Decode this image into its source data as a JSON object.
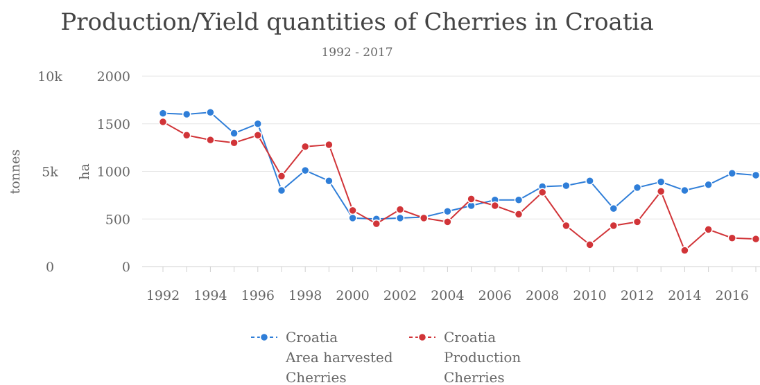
{
  "chart_data": {
    "type": "line",
    "title": "Production/Yield quantities of Cherries in Croatia",
    "subtitle": "1992 - 2017",
    "x": [
      1992,
      1993,
      1994,
      1995,
      1996,
      1997,
      1998,
      1999,
      2000,
      2001,
      2002,
      2003,
      2004,
      2005,
      2006,
      2007,
      2008,
      2009,
      2010,
      2011,
      2012,
      2013,
      2014,
      2015,
      2016,
      2017
    ],
    "x_tick_labels": [
      "1992",
      "1994",
      "1996",
      "1998",
      "2000",
      "2002",
      "2004",
      "2006",
      "2008",
      "2010",
      "2012",
      "2014",
      "2016"
    ],
    "x_tick_values": [
      1992,
      1994,
      1996,
      1998,
      2000,
      2002,
      2004,
      2006,
      2008,
      2010,
      2012,
      2014,
      2016
    ],
    "y_left_outer": {
      "label": "tonnes",
      "ticks": [
        "0",
        "5k",
        "10k"
      ],
      "ylim": [
        0,
        10000
      ]
    },
    "y_left_inner": {
      "label": "ha",
      "ticks": [
        "0",
        "500",
        "1000",
        "1500",
        "2000"
      ],
      "ylim": [
        0,
        2000
      ]
    },
    "series": [
      {
        "name": "Croatia Area harvested Cherries",
        "name_lines": [
          "Croatia",
          "Area harvested",
          "Cherries"
        ],
        "axis": "ha",
        "color": "#2f7ed8",
        "values": [
          1610,
          1600,
          1620,
          1400,
          1500,
          800,
          1010,
          900,
          510,
          500,
          510,
          520,
          580,
          640,
          700,
          700,
          840,
          850,
          900,
          610,
          830,
          890,
          800,
          860,
          980,
          960
        ]
      },
      {
        "name": "Croatia Production Cherries",
        "name_lines": [
          "Croatia",
          "Production",
          "Cherries"
        ],
        "axis": "tonnes",
        "color": "#d13438",
        "values": [
          7600,
          6900,
          6650,
          6500,
          6900,
          4750,
          6300,
          6400,
          2950,
          2250,
          3000,
          2550,
          2350,
          3550,
          3200,
          2750,
          3900,
          2150,
          1150,
          2150,
          2350,
          3950,
          850,
          1950,
          1500,
          1450
        ]
      }
    ],
    "grid": true,
    "legend": "bottom-center"
  }
}
